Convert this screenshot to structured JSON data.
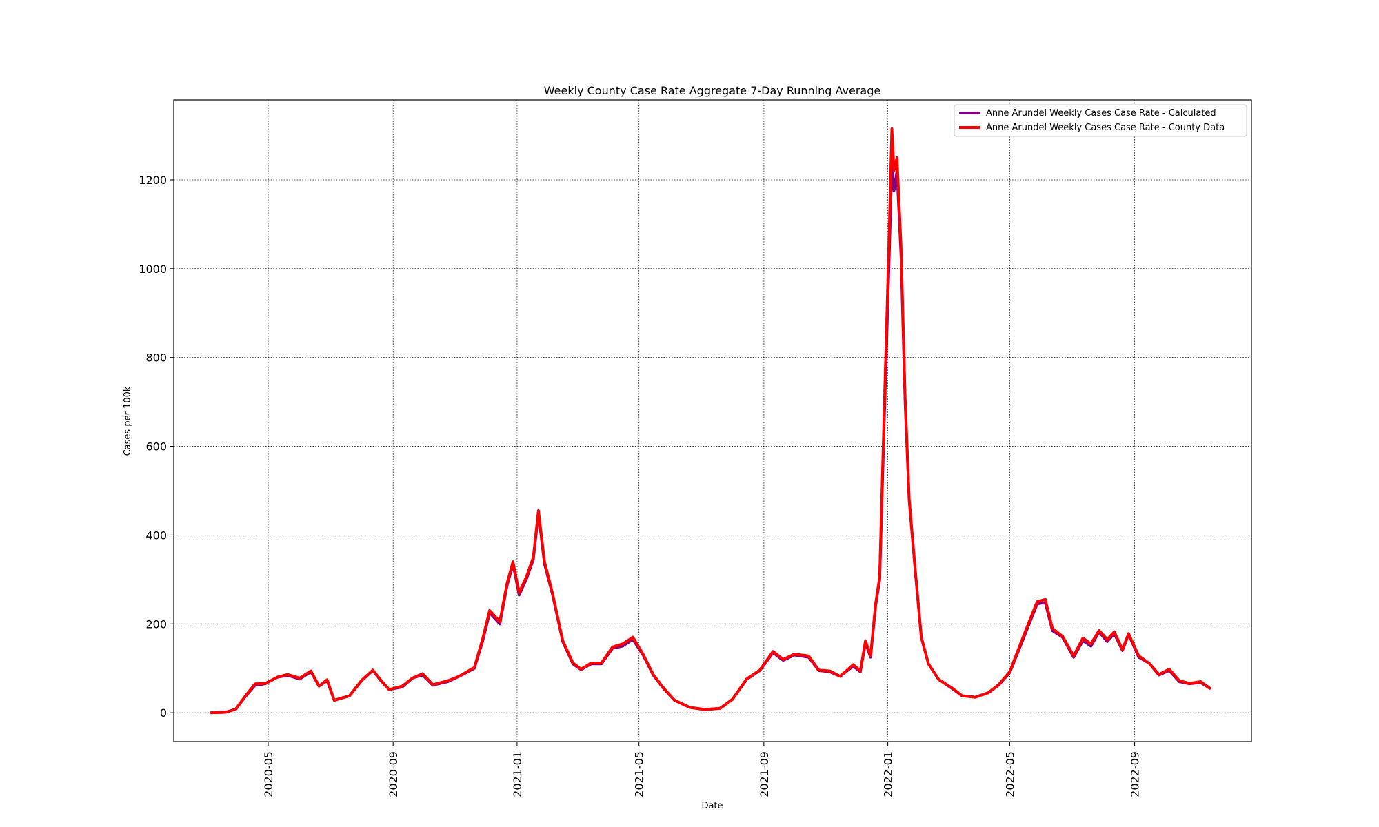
{
  "chart_data": {
    "type": "line",
    "title": "Weekly County Case Rate Aggregate 7-Day Running Average",
    "xlabel": "Date",
    "ylabel": "Cases per 100k",
    "xlim": [
      "2020-01-29",
      "2022-12-25"
    ],
    "ylim": [
      -65,
      1380
    ],
    "x_ticks": [
      "2020-05",
      "2020-09",
      "2021-01",
      "2021-05",
      "2021-09",
      "2022-01",
      "2022-05",
      "2022-09"
    ],
    "y_ticks": [
      0,
      200,
      400,
      600,
      800,
      1000,
      1200
    ],
    "grid": true,
    "legend_position": "top-right",
    "series": [
      {
        "name": "Anne Arundel Weekly Cases Case Rate - Calculated",
        "color": "#800080",
        "points": [
          [
            "2020-03-06",
            0
          ],
          [
            "2020-03-20",
            1
          ],
          [
            "2020-03-30",
            8
          ],
          [
            "2020-04-08",
            35
          ],
          [
            "2020-04-18",
            62
          ],
          [
            "2020-04-28",
            65
          ],
          [
            "2020-05-10",
            80
          ],
          [
            "2020-05-20",
            84
          ],
          [
            "2020-06-01",
            76
          ],
          [
            "2020-06-12",
            92
          ],
          [
            "2020-06-20",
            60
          ],
          [
            "2020-06-28",
            72
          ],
          [
            "2020-07-05",
            28
          ],
          [
            "2020-07-20",
            38
          ],
          [
            "2020-08-01",
            72
          ],
          [
            "2020-08-12",
            95
          ],
          [
            "2020-08-20",
            72
          ],
          [
            "2020-08-28",
            52
          ],
          [
            "2020-09-10",
            58
          ],
          [
            "2020-09-20",
            78
          ],
          [
            "2020-09-30",
            85
          ],
          [
            "2020-10-10",
            62
          ],
          [
            "2020-10-25",
            70
          ],
          [
            "2020-11-05",
            82
          ],
          [
            "2020-11-20",
            100
          ],
          [
            "2020-11-28",
            160
          ],
          [
            "2020-12-05",
            225
          ],
          [
            "2020-12-15",
            200
          ],
          [
            "2020-12-22",
            285
          ],
          [
            "2020-12-28",
            335
          ],
          [
            "2021-01-03",
            265
          ],
          [
            "2021-01-10",
            300
          ],
          [
            "2021-01-17",
            345
          ],
          [
            "2021-01-22",
            450
          ],
          [
            "2021-01-28",
            335
          ],
          [
            "2021-02-05",
            265
          ],
          [
            "2021-02-15",
            160
          ],
          [
            "2021-02-25",
            110
          ],
          [
            "2021-03-05",
            97
          ],
          [
            "2021-03-15",
            110
          ],
          [
            "2021-03-25",
            110
          ],
          [
            "2021-04-05",
            145
          ],
          [
            "2021-04-15",
            150
          ],
          [
            "2021-04-25",
            165
          ],
          [
            "2021-05-05",
            130
          ],
          [
            "2021-05-15",
            85
          ],
          [
            "2021-05-25",
            55
          ],
          [
            "2021-06-05",
            28
          ],
          [
            "2021-06-20",
            12
          ],
          [
            "2021-07-05",
            7
          ],
          [
            "2021-07-20",
            10
          ],
          [
            "2021-08-01",
            30
          ],
          [
            "2021-08-15",
            75
          ],
          [
            "2021-08-28",
            95
          ],
          [
            "2021-09-10",
            135
          ],
          [
            "2021-09-20",
            118
          ],
          [
            "2021-10-01",
            130
          ],
          [
            "2021-10-15",
            125
          ],
          [
            "2021-10-25",
            95
          ],
          [
            "2021-11-05",
            92
          ],
          [
            "2021-11-15",
            82
          ],
          [
            "2021-11-28",
            105
          ],
          [
            "2021-12-05",
            92
          ],
          [
            "2021-12-10",
            158
          ],
          [
            "2021-12-15",
            125
          ],
          [
            "2021-12-20",
            240
          ],
          [
            "2021-12-24",
            300
          ],
          [
            "2021-12-28",
            620
          ],
          [
            "2022-01-02",
            1000
          ],
          [
            "2022-01-05",
            1240
          ],
          [
            "2022-01-07",
            1175
          ],
          [
            "2022-01-10",
            1220
          ],
          [
            "2022-01-14",
            1030
          ],
          [
            "2022-01-18",
            700
          ],
          [
            "2022-01-22",
            480
          ],
          [
            "2022-01-28",
            320
          ],
          [
            "2022-02-03",
            170
          ],
          [
            "2022-02-10",
            110
          ],
          [
            "2022-02-20",
            75
          ],
          [
            "2022-03-05",
            55
          ],
          [
            "2022-03-15",
            38
          ],
          [
            "2022-03-28",
            35
          ],
          [
            "2022-04-10",
            45
          ],
          [
            "2022-04-20",
            62
          ],
          [
            "2022-05-01",
            90
          ],
          [
            "2022-05-15",
            170
          ],
          [
            "2022-05-28",
            245
          ],
          [
            "2022-06-05",
            248
          ],
          [
            "2022-06-12",
            185
          ],
          [
            "2022-06-22",
            170
          ],
          [
            "2022-07-03",
            125
          ],
          [
            "2022-07-12",
            162
          ],
          [
            "2022-07-20",
            150
          ],
          [
            "2022-07-28",
            182
          ],
          [
            "2022-08-05",
            160
          ],
          [
            "2022-08-12",
            178
          ],
          [
            "2022-08-20",
            140
          ],
          [
            "2022-08-26",
            176
          ],
          [
            "2022-09-05",
            125
          ],
          [
            "2022-09-15",
            112
          ],
          [
            "2022-09-25",
            85
          ],
          [
            "2022-10-05",
            95
          ],
          [
            "2022-10-15",
            70
          ],
          [
            "2022-10-25",
            65
          ],
          [
            "2022-11-05",
            68
          ],
          [
            "2022-11-14",
            55
          ]
        ]
      },
      {
        "name": "Anne Arundel Weekly Cases Case Rate - County Data",
        "color": "#ff0000",
        "points": [
          [
            "2020-03-06",
            0
          ],
          [
            "2020-03-20",
            1
          ],
          [
            "2020-03-30",
            8
          ],
          [
            "2020-04-08",
            36
          ],
          [
            "2020-04-18",
            65
          ],
          [
            "2020-04-28",
            66
          ],
          [
            "2020-05-10",
            80
          ],
          [
            "2020-05-20",
            86
          ],
          [
            "2020-06-01",
            78
          ],
          [
            "2020-06-12",
            94
          ],
          [
            "2020-06-20",
            60
          ],
          [
            "2020-06-28",
            74
          ],
          [
            "2020-07-05",
            28
          ],
          [
            "2020-07-20",
            38
          ],
          [
            "2020-08-01",
            73
          ],
          [
            "2020-08-12",
            96
          ],
          [
            "2020-08-20",
            73
          ],
          [
            "2020-08-28",
            52
          ],
          [
            "2020-09-10",
            60
          ],
          [
            "2020-09-20",
            78
          ],
          [
            "2020-09-30",
            88
          ],
          [
            "2020-10-10",
            63
          ],
          [
            "2020-10-25",
            72
          ],
          [
            "2020-11-05",
            82
          ],
          [
            "2020-11-20",
            102
          ],
          [
            "2020-11-28",
            165
          ],
          [
            "2020-12-05",
            230
          ],
          [
            "2020-12-15",
            205
          ],
          [
            "2020-12-22",
            290
          ],
          [
            "2020-12-28",
            340
          ],
          [
            "2021-01-03",
            270
          ],
          [
            "2021-01-10",
            305
          ],
          [
            "2021-01-17",
            350
          ],
          [
            "2021-01-22",
            455
          ],
          [
            "2021-01-28",
            340
          ],
          [
            "2021-02-05",
            268
          ],
          [
            "2021-02-15",
            162
          ],
          [
            "2021-02-25",
            112
          ],
          [
            "2021-03-05",
            98
          ],
          [
            "2021-03-15",
            112
          ],
          [
            "2021-03-25",
            112
          ],
          [
            "2021-04-05",
            148
          ],
          [
            "2021-04-15",
            155
          ],
          [
            "2021-04-25",
            170
          ],
          [
            "2021-05-05",
            132
          ],
          [
            "2021-05-15",
            86
          ],
          [
            "2021-05-25",
            56
          ],
          [
            "2021-06-05",
            28
          ],
          [
            "2021-06-20",
            12
          ],
          [
            "2021-07-05",
            7
          ],
          [
            "2021-07-20",
            10
          ],
          [
            "2021-08-01",
            30
          ],
          [
            "2021-08-15",
            76
          ],
          [
            "2021-08-28",
            96
          ],
          [
            "2021-09-10",
            138
          ],
          [
            "2021-09-20",
            120
          ],
          [
            "2021-10-01",
            132
          ],
          [
            "2021-10-15",
            128
          ],
          [
            "2021-10-25",
            96
          ],
          [
            "2021-11-05",
            94
          ],
          [
            "2021-11-15",
            82
          ],
          [
            "2021-11-28",
            108
          ],
          [
            "2021-12-05",
            94
          ],
          [
            "2021-12-10",
            162
          ],
          [
            "2021-12-15",
            128
          ],
          [
            "2021-12-20",
            245
          ],
          [
            "2021-12-24",
            305
          ],
          [
            "2021-12-28",
            640
          ],
          [
            "2022-01-02",
            1050
          ],
          [
            "2022-01-05",
            1315
          ],
          [
            "2022-01-07",
            1220
          ],
          [
            "2022-01-10",
            1250
          ],
          [
            "2022-01-14",
            1050
          ],
          [
            "2022-01-18",
            710
          ],
          [
            "2022-01-22",
            480
          ],
          [
            "2022-01-28",
            320
          ],
          [
            "2022-02-03",
            170
          ],
          [
            "2022-02-10",
            110
          ],
          [
            "2022-02-20",
            75
          ],
          [
            "2022-03-05",
            56
          ],
          [
            "2022-03-15",
            38
          ],
          [
            "2022-03-28",
            35
          ],
          [
            "2022-04-10",
            45
          ],
          [
            "2022-04-20",
            63
          ],
          [
            "2022-05-01",
            92
          ],
          [
            "2022-05-15",
            175
          ],
          [
            "2022-05-28",
            250
          ],
          [
            "2022-06-05",
            255
          ],
          [
            "2022-06-12",
            190
          ],
          [
            "2022-06-22",
            172
          ],
          [
            "2022-07-03",
            128
          ],
          [
            "2022-07-12",
            168
          ],
          [
            "2022-07-20",
            155
          ],
          [
            "2022-07-28",
            185
          ],
          [
            "2022-08-05",
            165
          ],
          [
            "2022-08-12",
            182
          ],
          [
            "2022-08-20",
            142
          ],
          [
            "2022-08-26",
            178
          ],
          [
            "2022-09-05",
            128
          ],
          [
            "2022-09-15",
            112
          ],
          [
            "2022-09-25",
            86
          ],
          [
            "2022-10-05",
            98
          ],
          [
            "2022-10-15",
            72
          ],
          [
            "2022-10-25",
            66
          ],
          [
            "2022-11-05",
            70
          ],
          [
            "2022-11-14",
            55
          ]
        ]
      }
    ]
  }
}
